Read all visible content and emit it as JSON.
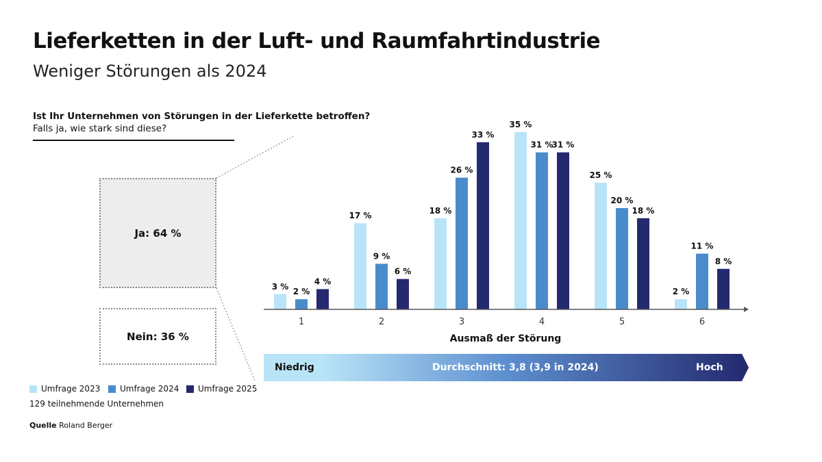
{
  "title": "Lieferketten in der Luft- und Raumfahrtindustrie",
  "subtitle": "Weniger Störungen als 2024",
  "question": "Ist Ihr Unternehmen von Störungen in der Lieferkette betroffen?",
  "question_followup": "Falls ja, wie stark sind diese?",
  "yes_box": "Ja: 64 %",
  "no_box": "Nein: 36 %",
  "participants": "129 teilnehmende Unternehmen",
  "source_label": "Quelle",
  "source": "Roland Berger",
  "scale_bar": {
    "low": "Niedrig",
    "average": "Durchschnitt: 3,8 (3,9 in 2024)",
    "high": "Hoch",
    "colors": [
      "#b9e4f7",
      "#23296e"
    ]
  },
  "chart_data": {
    "type": "bar",
    "xlabel": "Ausmaß der Störung",
    "ylabel": "",
    "categories": [
      "1",
      "2",
      "3",
      "4",
      "5",
      "6"
    ],
    "ylim": [
      0,
      35
    ],
    "grid": false,
    "legend_position": "bottom-left",
    "series": [
      {
        "name": "Umfrage 2023",
        "color": "#b9e4f7",
        "values": [
          3,
          17,
          18,
          35,
          25,
          2
        ]
      },
      {
        "name": "Umfrage 2024",
        "color": "#4a8ccb",
        "values": [
          2,
          9,
          26,
          31,
          20,
          11
        ]
      },
      {
        "name": "Umfrage 2025",
        "color": "#25296f",
        "values": [
          4,
          6,
          33,
          31,
          18,
          8
        ]
      }
    ],
    "value_suffix": " %"
  }
}
